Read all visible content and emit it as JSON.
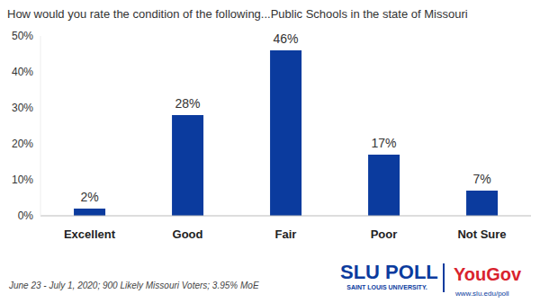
{
  "chart_data": {
    "type": "bar",
    "title": "How would you rate the condition of the following...Public Schools in the state of Missouri",
    "categories": [
      "Excellent",
      "Good",
      "Fair",
      "Poor",
      "Not Sure"
    ],
    "values": [
      2,
      28,
      46,
      17,
      7
    ],
    "value_labels": [
      "2%",
      "28%",
      "46%",
      "17%",
      "7%"
    ],
    "data_labels": true,
    "color": "#0b3b9e",
    "ylim": [
      0,
      50
    ],
    "yticks": [
      {
        "value": 0,
        "label": "0%"
      },
      {
        "value": 10,
        "label": "10%"
      },
      {
        "value": 20,
        "label": "20%"
      },
      {
        "value": 30,
        "label": "30%"
      },
      {
        "value": 40,
        "label": "40%"
      },
      {
        "value": 50,
        "label": "50%"
      }
    ],
    "grid": false,
    "annotations": [
      "June 23 - July 1, 2020; 900 Likely Missouri Voters; 3.95% MoE",
      "SLU POLL",
      "SAINT LOUIS UNIVERSITY.",
      "YouGov",
      "www.slu.edu/poll"
    ]
  }
}
